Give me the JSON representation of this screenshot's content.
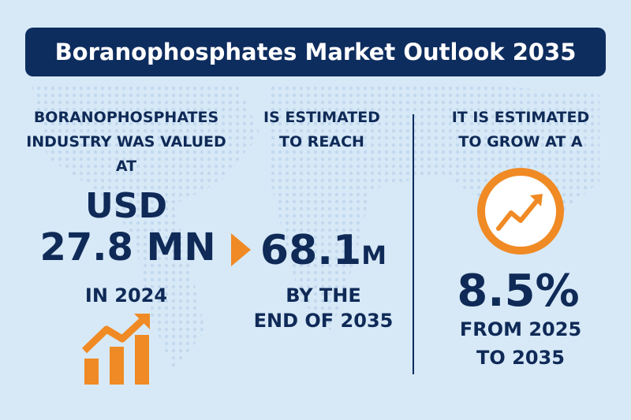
{
  "header": {
    "title": "Boranophosphates Market Outlook 2035"
  },
  "left": {
    "intro": [
      "BORANOPHOSPHATES",
      "INDUSTRY WAS VALUED",
      "AT"
    ],
    "value": [
      "USD",
      "27.8 MN"
    ],
    "period": "IN 2024"
  },
  "middle": {
    "intro": [
      "IS ESTIMATED",
      "TO REACH"
    ],
    "value": "68.1",
    "unit": "M",
    "period": [
      "BY THE",
      "END OF 2035"
    ]
  },
  "right": {
    "intro": [
      "IT IS ESTIMATED",
      "TO GROW AT A"
    ],
    "value": "8.5%",
    "period": [
      "FROM 2025",
      "TO 2035"
    ]
  }
}
